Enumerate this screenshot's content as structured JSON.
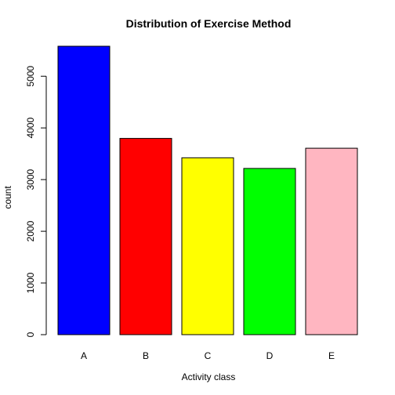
{
  "chart_data": {
    "type": "bar",
    "title": "Distribution of Exercise Method",
    "xlabel": "Activity class",
    "ylabel": "count",
    "categories": [
      "A",
      "B",
      "C",
      "D",
      "E"
    ],
    "values": [
      5580,
      3797,
      3422,
      3216,
      3607
    ],
    "colors": [
      "#0000ff",
      "#ff0000",
      "#ffff00",
      "#00ff00",
      "#ffb6c1"
    ],
    "ylim": [
      0,
      5580
    ],
    "yticks": [
      0,
      1000,
      2000,
      3000,
      4000,
      5000
    ],
    "grid": false,
    "legend": "none"
  }
}
